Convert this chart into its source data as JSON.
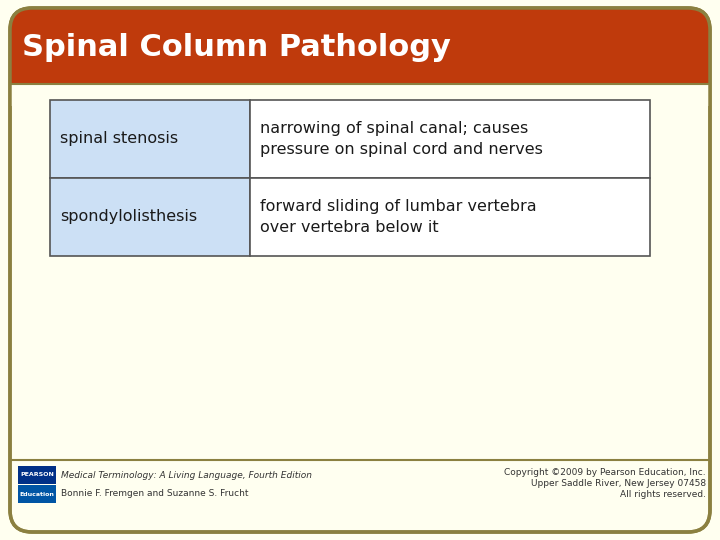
{
  "title": "Spinal Column Pathology",
  "title_color": "#ffffff",
  "title_bg_color": "#bf3a0c",
  "bg_color": "#fffff0",
  "scroll_border_color": "#8b8040",
  "table": {
    "terms": [
      "spinal stenosis",
      "spondylolisthesis"
    ],
    "definitions": [
      "narrowing of spinal canal; causes\npressure on spinal cord and nerves",
      "forward sliding of lumbar vertebra\nover vertebra below it"
    ],
    "term_bg": "#cce0f5",
    "def_bg": "#ffffff",
    "text_color": "#1a1a1a",
    "border_color": "#555555"
  },
  "footer_left_line1": "Medical Terminology: A Living Language, Fourth Edition",
  "footer_left_line2": "Bonnie F. Fremgen and Suzanne S. Frucht",
  "footer_right_line1": "Copyright ©2009 by Pearson Education, Inc.",
  "footer_right_line2": "Upper Saddle River, New Jersey 07458",
  "footer_right_line3": "All rights reserved.",
  "pearson_blue1": "#003087",
  "pearson_blue2": "#0055a5",
  "fig_width": 7.2,
  "fig_height": 5.4,
  "dpi": 100
}
